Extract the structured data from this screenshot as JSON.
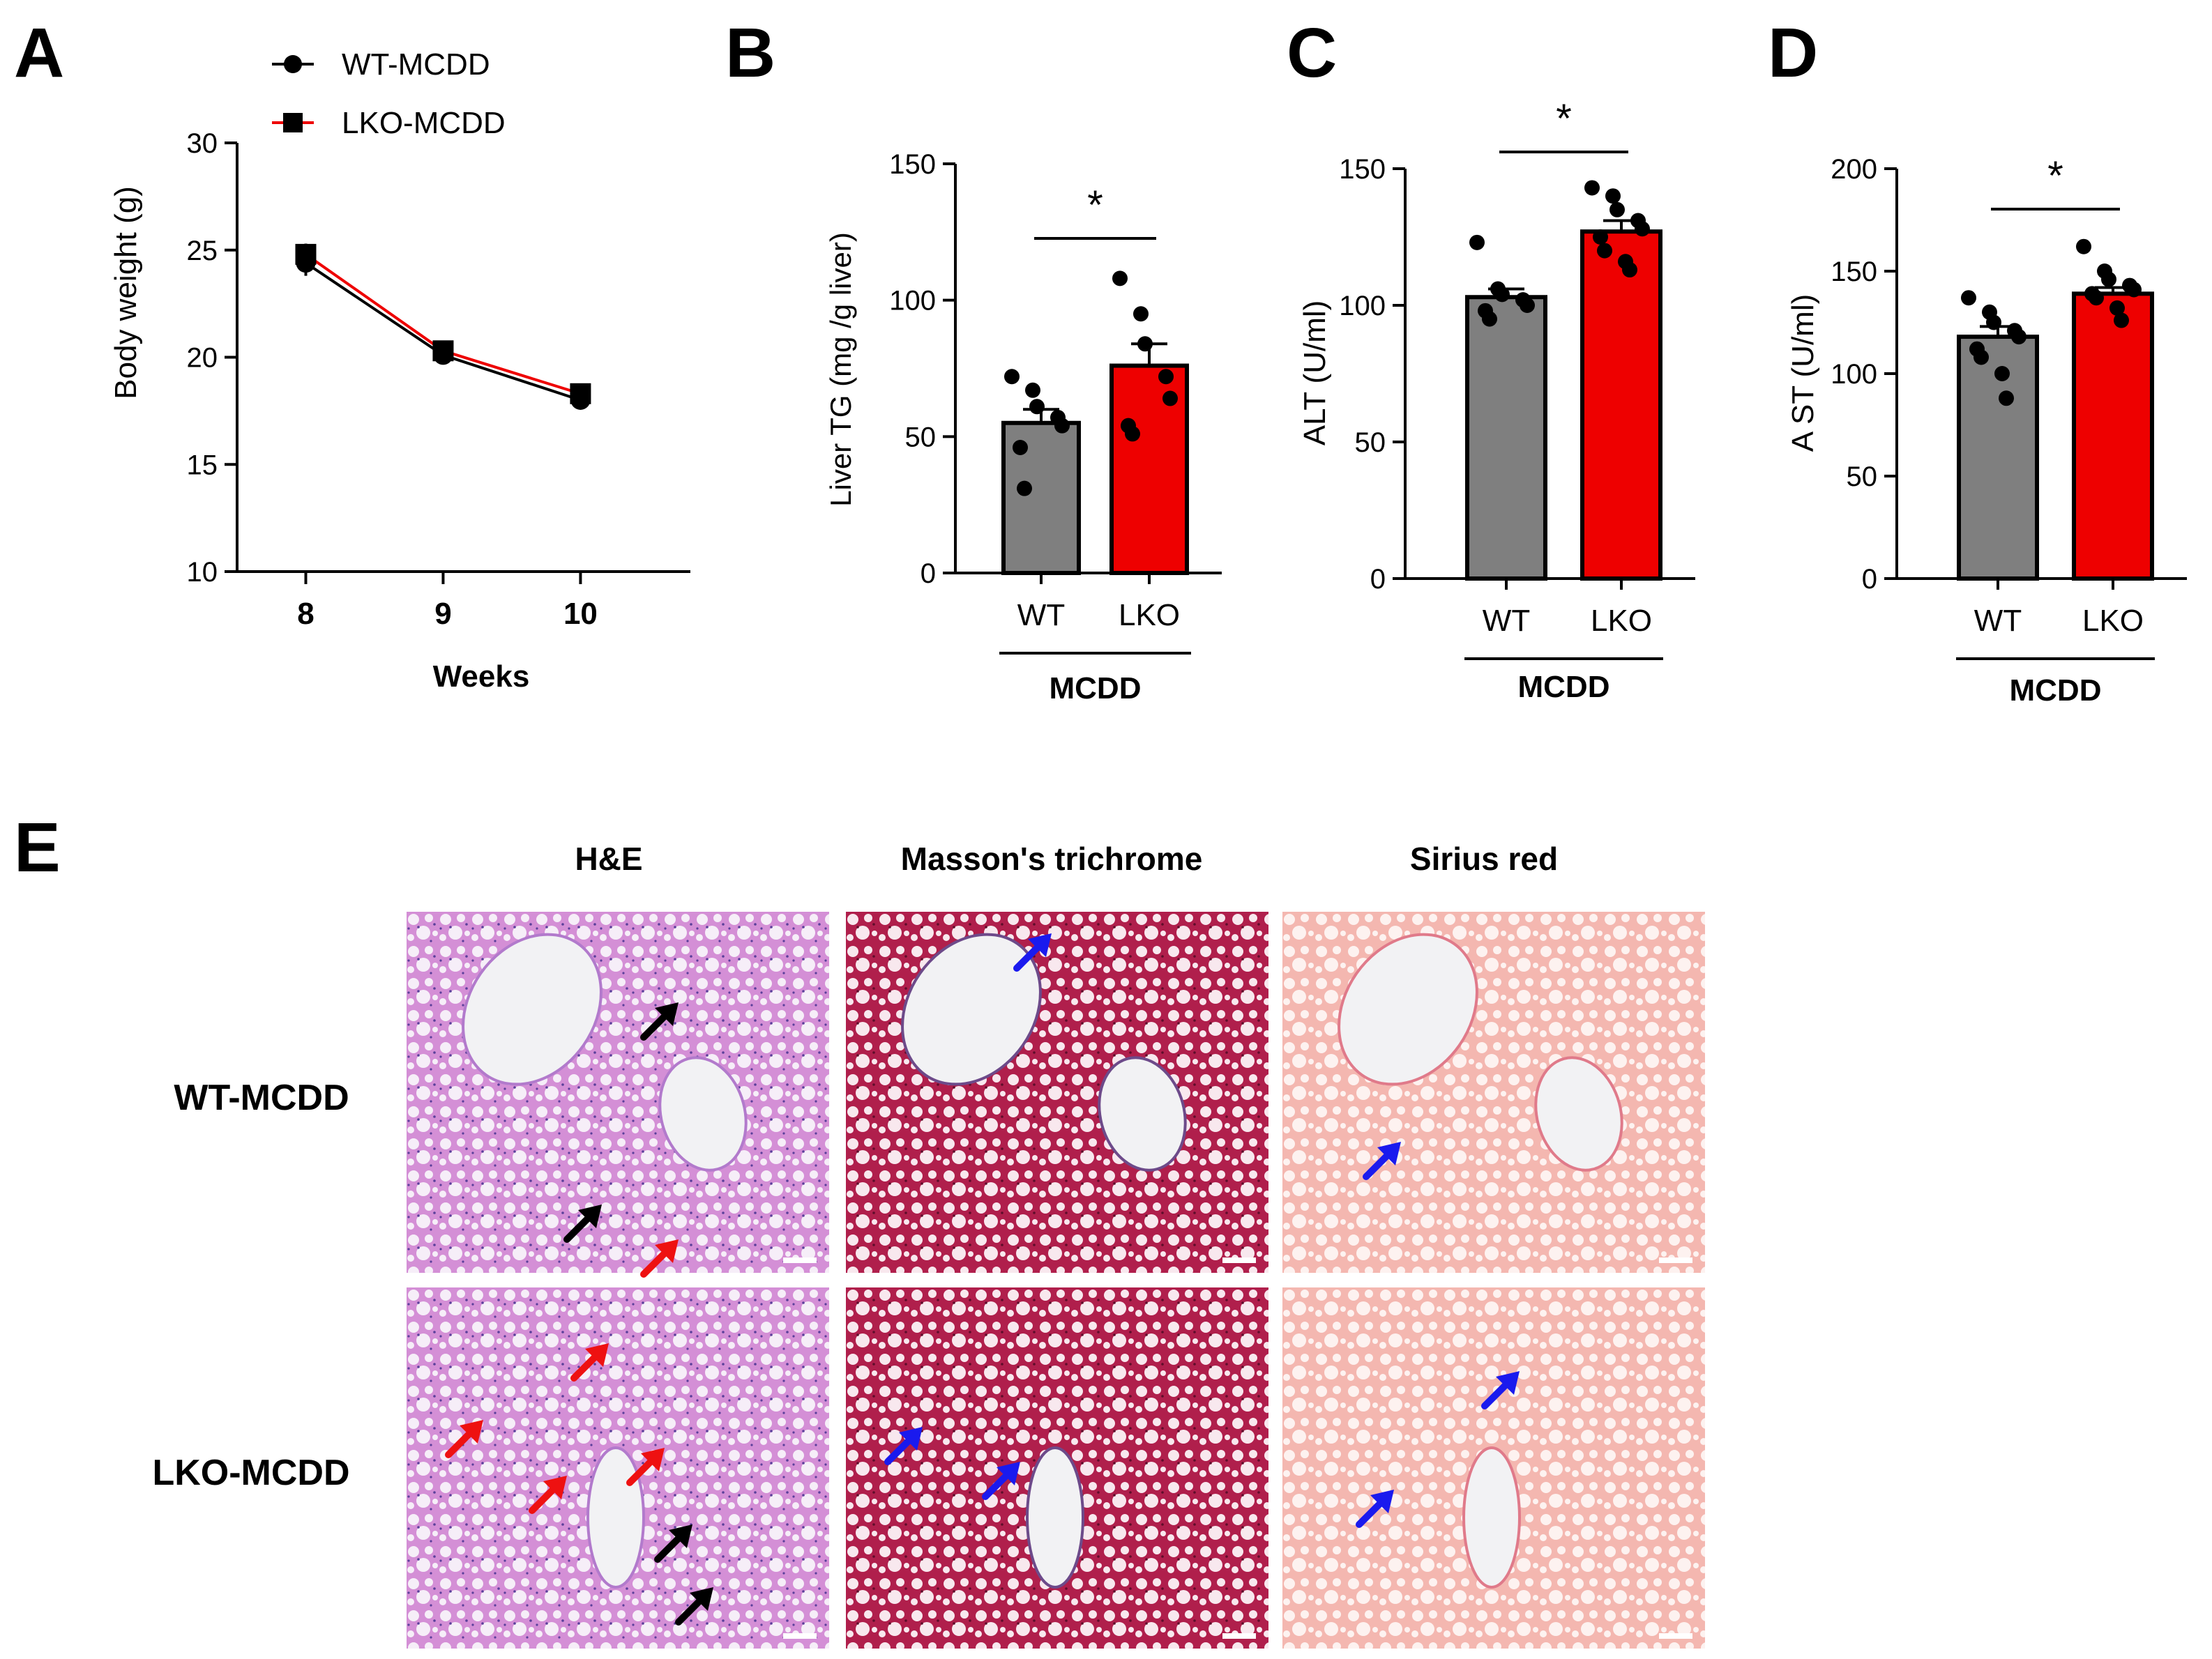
{
  "panel_labels": {
    "a": "A",
    "b": "B",
    "c": "C",
    "d": "D",
    "e": "E"
  },
  "colors": {
    "wt": "#7f7f7f",
    "lko": "#ee0000",
    "axis": "#000000",
    "he_bg": "#d48fd6",
    "masson_bg": "#b01f4c",
    "sirius_bg": "#f4b7b0",
    "arrow_black": "#000000",
    "arrow_red": "#ee1111",
    "arrow_blue": "#1a1aee"
  },
  "chart_data": [
    {
      "id": "A",
      "type": "line",
      "title": "",
      "xlabel": "Weeks",
      "ylabel": "Body weight (g)",
      "x": [
        8,
        9,
        10
      ],
      "xlim": [
        7.5,
        10.8
      ],
      "ylim": [
        10,
        30
      ],
      "yticks": [
        10,
        15,
        20,
        25,
        30
      ],
      "series": [
        {
          "name": "WT-MCDD",
          "marker": "circle",
          "line_color": "#000000",
          "values": [
            24.4,
            20.1,
            18.0
          ],
          "sem": [
            0.6,
            0.4,
            0.3
          ]
        },
        {
          "name": "LKO-MCDD",
          "marker": "square",
          "line_color": "#ee0000",
          "values": [
            24.8,
            20.3,
            18.3
          ],
          "sem": [
            0.5,
            0.4,
            0.3
          ]
        }
      ]
    },
    {
      "id": "B",
      "type": "bar",
      "ylabel": "Liver TG (mg /g liver)",
      "categories": [
        "WT",
        "LKO"
      ],
      "group_label": "MCDD",
      "ylim": [
        0,
        150
      ],
      "yticks": [
        0,
        50,
        100,
        150
      ],
      "values": [
        55,
        76
      ],
      "sem": [
        5,
        8
      ],
      "points": [
        [
          72,
          67,
          61,
          57,
          54,
          46,
          31
        ],
        [
          108,
          95,
          84,
          72,
          64,
          54,
          51
        ]
      ],
      "significance": "*"
    },
    {
      "id": "C",
      "type": "bar",
      "ylabel": "ALT (U/ml)",
      "categories": [
        "WT",
        "LKO"
      ],
      "group_label": "MCDD",
      "ylim": [
        0,
        150
      ],
      "yticks": [
        0,
        50,
        100,
        150
      ],
      "values": [
        103,
        127
      ],
      "sem": [
        3,
        4
      ],
      "points": [
        [
          123,
          106,
          104,
          102,
          100,
          98,
          95
        ],
        [
          143,
          140,
          135,
          131,
          128,
          125,
          120,
          116,
          113
        ]
      ],
      "significance": "*"
    },
    {
      "id": "D",
      "type": "bar",
      "ylabel": "A ST (U/ml)",
      "categories": [
        "WT",
        "LKO"
      ],
      "group_label": "MCDD",
      "ylim": [
        0,
        200
      ],
      "yticks": [
        0,
        50,
        100,
        150,
        200
      ],
      "values": [
        118,
        139
      ],
      "sem": [
        5,
        3
      ],
      "points": [
        [
          137,
          130,
          125,
          121,
          118,
          112,
          108,
          100,
          88
        ],
        [
          162,
          150,
          146,
          143,
          141,
          139,
          137,
          132,
          126
        ]
      ],
      "significance": "*"
    }
  ],
  "histology": {
    "columns": [
      "H&E",
      "Masson's trichrome",
      "Sirius red"
    ],
    "rows": [
      "WT-MCDD",
      "LKO-MCDD"
    ]
  }
}
